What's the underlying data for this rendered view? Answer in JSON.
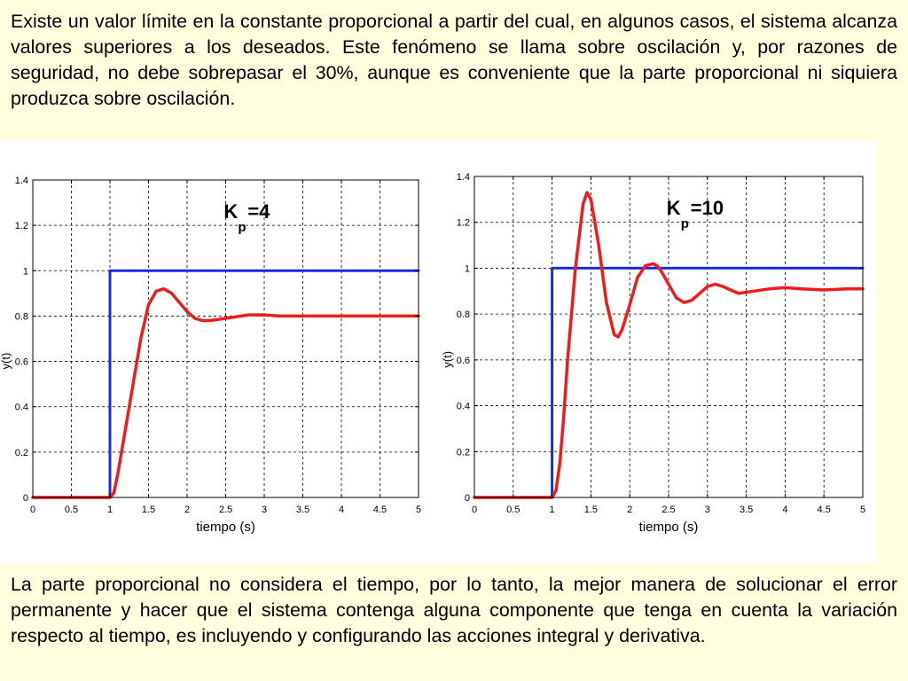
{
  "text": {
    "top_paragraph": "Existe un valor límite en la constante proporcional a partir del cual, en algunos casos, el sistema alcanza valores superiores a los deseados. Este fenómeno se llama sobre oscilación y, por razones de seguridad, no debe sobrepasar el 30%, aunque es conveniente que la parte proporcional ni siquiera produzca sobre oscilación.",
    "bottom_paragraph": "La parte proporcional no considera el tiempo, por lo tanto, la mejor manera de solucionar el error permanente y hacer que el sistema contenga alguna componente que tenga en cuenta la variación respecto al tiempo, es incluyendo y configurando las acciones integral y derivativa."
  },
  "colors": {
    "setpoint": "#1a2ed8",
    "response": "#ee1c1c",
    "grid": "#000000",
    "page_background": "#ffffe0",
    "plot_background": "#ffffff"
  },
  "chart_data": [
    {
      "type": "line",
      "annotation": {
        "main": "K",
        "sub": "p",
        "value": "=4"
      },
      "xlabel": "tiempo (s)",
      "ylabel": "y(t)",
      "xlim": [
        0,
        5
      ],
      "ylim": [
        0,
        1.4
      ],
      "xticks": [
        "0",
        "0.5",
        "1",
        "1.5",
        "2",
        "2.5",
        "3",
        "3.5",
        "4",
        "4.5",
        "5"
      ],
      "yticks": [
        "0",
        "0.2",
        "0.4",
        "0.6",
        "0.8",
        "1",
        "1.2",
        "1.4"
      ],
      "grid": true,
      "series": [
        {
          "role": "setpoint",
          "color": "#1a2ed8",
          "x": [
            0,
            1,
            1,
            5
          ],
          "y": [
            0,
            0,
            1,
            1
          ]
        },
        {
          "role": "response",
          "color": "#ee1c1c",
          "x": [
            0,
            1.0,
            1.05,
            1.1,
            1.2,
            1.3,
            1.4,
            1.5,
            1.6,
            1.7,
            1.8,
            1.9,
            2.0,
            2.1,
            2.2,
            2.3,
            2.4,
            2.5,
            2.6,
            2.7,
            2.8,
            2.9,
            3.0,
            3.2,
            3.4,
            3.6,
            3.8,
            4.0,
            4.5,
            5.0
          ],
          "y": [
            0,
            0,
            0.02,
            0.1,
            0.3,
            0.5,
            0.7,
            0.85,
            0.91,
            0.92,
            0.9,
            0.86,
            0.82,
            0.79,
            0.78,
            0.78,
            0.785,
            0.79,
            0.795,
            0.8,
            0.805,
            0.805,
            0.805,
            0.8,
            0.8,
            0.8,
            0.8,
            0.8,
            0.8,
            0.8
          ]
        }
      ]
    },
    {
      "type": "line",
      "annotation": {
        "main": "K",
        "sub": "p",
        "value": "=10"
      },
      "xlabel": "tiempo (s)",
      "ylabel": "y(t)",
      "xlim": [
        0,
        5
      ],
      "ylim": [
        0,
        1.4
      ],
      "xticks": [
        "0",
        "0.5",
        "1",
        "1.5",
        "2",
        "2.5",
        "3",
        "3.5",
        "4",
        "4.5",
        "5"
      ],
      "yticks": [
        "0",
        "0.2",
        "0.4",
        "0.6",
        "0.8",
        "1",
        "1.2",
        "1.4"
      ],
      "grid": true,
      "series": [
        {
          "role": "setpoint",
          "color": "#1a2ed8",
          "x": [
            0,
            1,
            1,
            5
          ],
          "y": [
            0,
            0,
            1,
            1
          ]
        },
        {
          "role": "response",
          "color": "#ee1c1c",
          "x": [
            0,
            1.0,
            1.05,
            1.1,
            1.15,
            1.2,
            1.3,
            1.4,
            1.45,
            1.5,
            1.6,
            1.7,
            1.8,
            1.85,
            1.9,
            2.0,
            2.1,
            2.2,
            2.3,
            2.35,
            2.4,
            2.5,
            2.6,
            2.7,
            2.8,
            2.9,
            3.0,
            3.1,
            3.2,
            3.4,
            3.6,
            3.8,
            4.0,
            4.2,
            4.5,
            4.8,
            5.0
          ],
          "y": [
            0,
            0,
            0.03,
            0.15,
            0.35,
            0.6,
            1.0,
            1.28,
            1.33,
            1.3,
            1.1,
            0.85,
            0.71,
            0.7,
            0.73,
            0.84,
            0.96,
            1.01,
            1.02,
            1.01,
            0.99,
            0.93,
            0.87,
            0.85,
            0.86,
            0.89,
            0.92,
            0.93,
            0.92,
            0.89,
            0.9,
            0.91,
            0.915,
            0.91,
            0.905,
            0.91,
            0.91
          ]
        }
      ]
    }
  ]
}
